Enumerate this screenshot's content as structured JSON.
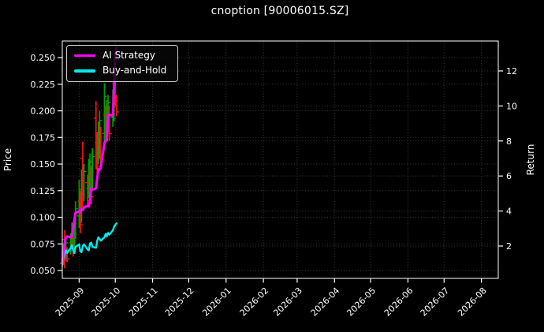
{
  "title": "cnoption [90006015.SZ]",
  "colors": {
    "background": "#000000",
    "text": "#ffffff",
    "grid": "#3b3b3b",
    "spine": "#ffffff",
    "candle_up": "#00a000",
    "candle_down": "#ff1010",
    "ai_strategy": "#ff00ff",
    "buy_and_hold": "#00eaea"
  },
  "legend": {
    "items": [
      {
        "label": "AI Strategy",
        "color": "#ff00ff"
      },
      {
        "label": "Buy-and-Hold",
        "color": "#00eaea"
      }
    ]
  },
  "axes": {
    "x": {
      "ticks": [
        {
          "label": "2025-09",
          "day": 14
        },
        {
          "label": "2025-10",
          "day": 44
        },
        {
          "label": "2025-11",
          "day": 75
        },
        {
          "label": "2025-12",
          "day": 105
        },
        {
          "label": "2026-01",
          "day": 136
        },
        {
          "label": "2026-02",
          "day": 167
        },
        {
          "label": "2026-03",
          "day": 195
        },
        {
          "label": "2026-04",
          "day": 226
        },
        {
          "label": "2026-05",
          "day": 256
        },
        {
          "label": "2026-06",
          "day": 287
        },
        {
          "label": "2026-07",
          "day": 317
        },
        {
          "label": "2026-08",
          "day": 348
        }
      ]
    },
    "y_left": {
      "label": "Price",
      "ticks": [
        {
          "label": "0.050",
          "value": 0.05
        },
        {
          "label": "0.075",
          "value": 0.075
        },
        {
          "label": "0.100",
          "value": 0.1
        },
        {
          "label": "0.125",
          "value": 0.125
        },
        {
          "label": "0.150",
          "value": 0.15
        },
        {
          "label": "0.175",
          "value": 0.175
        },
        {
          "label": "0.200",
          "value": 0.2
        },
        {
          "label": "0.225",
          "value": 0.225
        },
        {
          "label": "0.250",
          "value": 0.25
        }
      ]
    },
    "y_right": {
      "label": "Return",
      "ticks": [
        {
          "label": "2",
          "value": 2
        },
        {
          "label": "4",
          "value": 4
        },
        {
          "label": "6",
          "value": 6
        },
        {
          "label": "8",
          "value": 8
        },
        {
          "label": "10",
          "value": 10
        },
        {
          "label": "12",
          "value": 12
        }
      ]
    }
  },
  "chart_data": {
    "type": "line",
    "title": "cnoption [90006015.SZ]",
    "xlabel": "",
    "ylabel_left": "Price",
    "ylabel_right": "Return",
    "grid": true,
    "legend_position": "upper left",
    "x_range": [
      "2025-08-18",
      "2026-08-15"
    ],
    "x_domain_days": 362,
    "y_left_range": [
      0.0426,
      0.2656
    ],
    "y_right_range": [
      0.153,
      13.71
    ],
    "dates": [
      "2025-08-18",
      "2025-08-19",
      "2025-08-20",
      "2025-08-21",
      "2025-08-22",
      "2025-08-25",
      "2025-08-26",
      "2025-08-27",
      "2025-08-28",
      "2025-08-29",
      "2025-09-01",
      "2025-09-02",
      "2025-09-03",
      "2025-09-04",
      "2025-09-05",
      "2025-09-08",
      "2025-09-09",
      "2025-09-10",
      "2025-09-11",
      "2025-09-12",
      "2025-09-15",
      "2025-09-16",
      "2025-09-17",
      "2025-09-18",
      "2025-09-19",
      "2025-09-22",
      "2025-09-23",
      "2025-09-24",
      "2025-09-25",
      "2025-09-26",
      "2025-09-29",
      "2025-09-30",
      "2025-10-01",
      "2025-10-02"
    ],
    "x_days": [
      0,
      1,
      2,
      3,
      4,
      7,
      8,
      9,
      10,
      11,
      14,
      15,
      16,
      17,
      18,
      21,
      22,
      23,
      24,
      25,
      28,
      29,
      30,
      31,
      32,
      35,
      36,
      37,
      38,
      39,
      42,
      43,
      44,
      45
    ],
    "series": [
      {
        "name": "AI Strategy",
        "axis": "right",
        "color": "#ff00ff",
        "values": [
          1.0,
          1.6,
          2.2,
          2.5,
          2.55,
          2.5,
          2.6,
          3.0,
          3.5,
          3.9,
          4.0,
          3.95,
          4.1,
          4.05,
          4.2,
          4.3,
          4.25,
          4.6,
          5.3,
          5.2,
          5.3,
          5.9,
          6.4,
          6.35,
          6.5,
          7.9,
          8.0,
          8.05,
          9.4,
          9.5,
          9.45,
          11.3,
          13.0,
          13.3
        ]
      },
      {
        "name": "Buy-and-Hold",
        "axis": "right",
        "color": "#00eaea",
        "values": [
          1.0,
          1.3,
          1.55,
          1.75,
          1.6,
          1.9,
          2.05,
          1.75,
          1.6,
          1.95,
          2.1,
          1.7,
          1.65,
          2.0,
          2.1,
          1.8,
          1.75,
          2.15,
          2.2,
          1.95,
          1.9,
          2.3,
          2.5,
          2.4,
          2.3,
          2.5,
          2.7,
          2.55,
          2.75,
          2.65,
          2.9,
          3.1,
          3.2,
          3.3
        ]
      }
    ],
    "candles": {
      "axis": "left",
      "lows": [
        0.053,
        0.055,
        0.052,
        0.06,
        0.058,
        0.065,
        0.07,
        0.063,
        0.07,
        0.08,
        0.09,
        0.085,
        0.095,
        0.109,
        0.115,
        0.11,
        0.118,
        0.12,
        0.112,
        0.125,
        0.145,
        0.14,
        0.15,
        0.155,
        0.148,
        0.163,
        0.17,
        0.175,
        0.18,
        0.172,
        0.185,
        0.19,
        0.204,
        0.195
      ],
      "highs": [
        0.068,
        0.075,
        0.088,
        0.08,
        0.072,
        0.085,
        0.095,
        0.09,
        0.1,
        0.115,
        0.135,
        0.125,
        0.145,
        0.171,
        0.15,
        0.14,
        0.155,
        0.16,
        0.148,
        0.165,
        0.209,
        0.18,
        0.19,
        0.2,
        0.185,
        0.226,
        0.205,
        0.21,
        0.215,
        0.205,
        0.22,
        0.23,
        0.231,
        0.215
      ],
      "dirs": [
        "up",
        "up",
        "down",
        "up",
        "down",
        "up",
        "up",
        "down",
        "up",
        "up",
        "up",
        "down",
        "up",
        "down",
        "up",
        "down",
        "up",
        "up",
        "down",
        "up",
        "down",
        "down",
        "up",
        "up",
        "down",
        "up",
        "down",
        "up",
        "up",
        "down",
        "up",
        "up",
        "down",
        "down"
      ]
    }
  }
}
